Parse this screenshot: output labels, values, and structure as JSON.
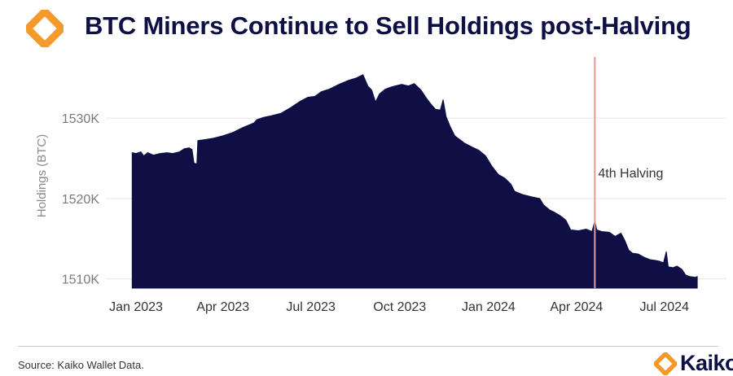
{
  "title": "BTC Miners Continue to Sell Holdings post-Halving",
  "source": "Source: Kaiko Wallet Data.",
  "brand": "Kaiko",
  "colors": {
    "fill": "#0d0f45",
    "halving_line": "#e89a8e",
    "accent": "#f39a2a",
    "grid": "#e6e6e6"
  },
  "chart_data": {
    "type": "area",
    "title": "BTC Miners Continue to Sell Holdings post-Halving",
    "xlabel": "",
    "ylabel": "Holdings (BTC)",
    "ylim": [
      1508860,
      1537000
    ],
    "yticks": [
      {
        "value": 1510000,
        "label": "1510K"
      },
      {
        "value": 1520000,
        "label": "1520K"
      },
      {
        "value": 1530000,
        "label": "1530K"
      }
    ],
    "xticks": [
      {
        "value": 0,
        "label": "Jan 2023"
      },
      {
        "value": 90,
        "label": "Apr 2023"
      },
      {
        "value": 181,
        "label": "Jul 2023"
      },
      {
        "value": 273,
        "label": "Oct 2023"
      },
      {
        "value": 365,
        "label": "Jan 2024"
      },
      {
        "value": 456,
        "label": "Apr 2024"
      },
      {
        "value": 547,
        "label": "Jul 2024"
      }
    ],
    "x_unit": "days since 2023-01-01",
    "annotation": {
      "x": 475,
      "label": "4th Halving"
    },
    "series": [
      {
        "name": "Holdings",
        "points": [
          [
            -4,
            1525700
          ],
          [
            0,
            1525600
          ],
          [
            5,
            1525800
          ],
          [
            8,
            1525300
          ],
          [
            12,
            1525700
          ],
          [
            18,
            1525400
          ],
          [
            25,
            1525600
          ],
          [
            32,
            1525700
          ],
          [
            38,
            1525600
          ],
          [
            45,
            1525800
          ],
          [
            50,
            1526200
          ],
          [
            55,
            1526300
          ],
          [
            58,
            1526100
          ],
          [
            60,
            1524400
          ],
          [
            63,
            1524300
          ],
          [
            64,
            1527200
          ],
          [
            70,
            1527300
          ],
          [
            80,
            1527500
          ],
          [
            90,
            1527800
          ],
          [
            100,
            1528200
          ],
          [
            110,
            1528800
          ],
          [
            118,
            1529200
          ],
          [
            122,
            1529400
          ],
          [
            125,
            1529800
          ],
          [
            132,
            1530100
          ],
          [
            140,
            1530300
          ],
          [
            150,
            1530600
          ],
          [
            160,
            1531300
          ],
          [
            170,
            1532100
          ],
          [
            178,
            1532600
          ],
          [
            185,
            1532700
          ],
          [
            192,
            1533300
          ],
          [
            200,
            1533600
          ],
          [
            210,
            1534200
          ],
          [
            220,
            1534700
          ],
          [
            228,
            1535000
          ],
          [
            235,
            1535400
          ],
          [
            240,
            1534000
          ],
          [
            244,
            1533500
          ],
          [
            248,
            1532000
          ],
          [
            252,
            1533000
          ],
          [
            258,
            1533600
          ],
          [
            265,
            1533900
          ],
          [
            275,
            1534200
          ],
          [
            282,
            1534000
          ],
          [
            288,
            1534300
          ],
          [
            295,
            1533500
          ],
          [
            300,
            1532600
          ],
          [
            305,
            1531800
          ],
          [
            310,
            1531100
          ],
          [
            315,
            1531000
          ],
          [
            318,
            1532300
          ],
          [
            321,
            1530200
          ],
          [
            325,
            1529000
          ],
          [
            330,
            1527800
          ],
          [
            340,
            1526900
          ],
          [
            348,
            1526400
          ],
          [
            355,
            1526000
          ],
          [
            362,
            1525300
          ],
          [
            368,
            1524100
          ],
          [
            375,
            1523000
          ],
          [
            382,
            1522500
          ],
          [
            388,
            1521800
          ],
          [
            392,
            1520900
          ],
          [
            400,
            1520500
          ],
          [
            410,
            1520200
          ],
          [
            418,
            1520000
          ],
          [
            422,
            1519200
          ],
          [
            428,
            1518600
          ],
          [
            433,
            1518300
          ],
          [
            440,
            1517800
          ],
          [
            445,
            1517300
          ],
          [
            450,
            1516100
          ],
          [
            458,
            1516000
          ],
          [
            466,
            1516200
          ],
          [
            472,
            1515900
          ],
          [
            475,
            1517200
          ],
          [
            477,
            1516100
          ],
          [
            482,
            1515900
          ],
          [
            490,
            1515800
          ],
          [
            496,
            1515300
          ],
          [
            502,
            1515700
          ],
          [
            506,
            1514800
          ],
          [
            510,
            1513600
          ],
          [
            514,
            1513200
          ],
          [
            520,
            1513100
          ],
          [
            526,
            1512700
          ],
          [
            532,
            1512400
          ],
          [
            538,
            1512300
          ],
          [
            542,
            1512200
          ],
          [
            546,
            1512000
          ],
          [
            549,
            1513400
          ],
          [
            551,
            1511500
          ],
          [
            556,
            1511400
          ],
          [
            560,
            1511600
          ],
          [
            565,
            1511200
          ],
          [
            569,
            1510500
          ],
          [
            573,
            1510300
          ],
          [
            579,
            1510200
          ],
          [
            581,
            1510300
          ]
        ]
      }
    ]
  }
}
